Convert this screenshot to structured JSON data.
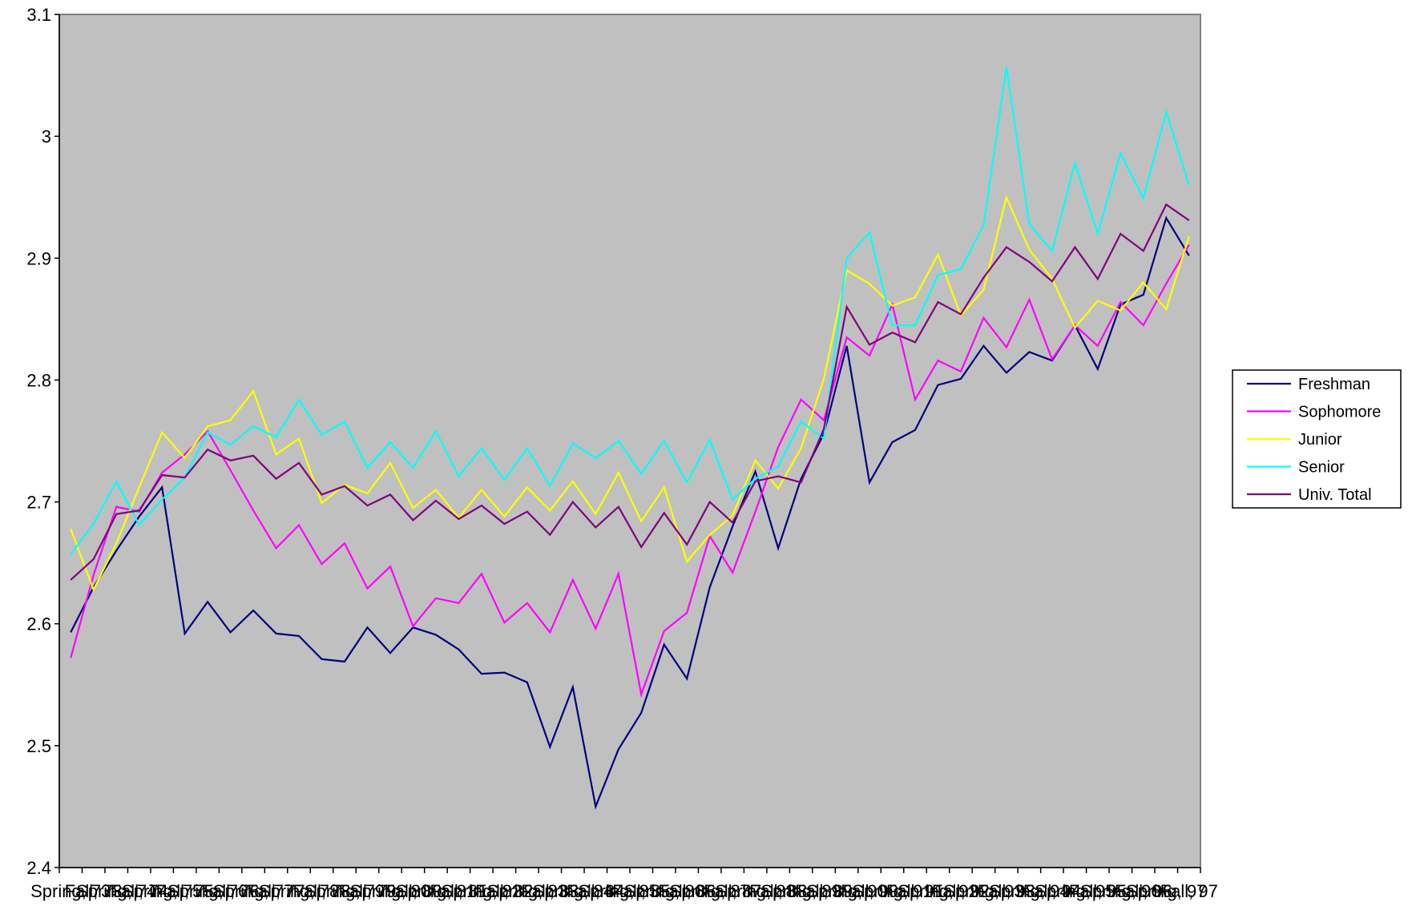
{
  "chart_data": {
    "type": "line",
    "title": "",
    "xlabel": "",
    "ylabel": "",
    "ylim": [
      2.4,
      3.1
    ],
    "yticks": [
      2.4,
      2.5,
      2.6,
      2.7,
      2.8,
      2.9,
      3,
      3.1
    ],
    "ytick_labels": [
      "2.4",
      "2.5",
      "2.6",
      "2.7",
      "2.8",
      "2.9",
      "3",
      "3.1"
    ],
    "grid": false,
    "plot_background": "#c0c0c0",
    "legend_position": "right",
    "categories": [
      "Spring, 73",
      "Fall, 73",
      "Spring, 74",
      "Fall, 74",
      "Spring, 75",
      "Fall, 75",
      "Spring, 76",
      "Fall, 76",
      "Spring, 77",
      "Fall, 77",
      "Spring, 78",
      "Fall, 78",
      "Spring, 79",
      "Fall, 79",
      "Spring, 80",
      "Fall, 80",
      "Spring, 81",
      "Fall, 81",
      "Spring, 82",
      "Fall, 82",
      "Spring, 83",
      "Fall, 83",
      "Spring, 84",
      "Fall, 84",
      "Spring, 85",
      "Fall, 85",
      "Spring, 86",
      "Fall, 86",
      "Spring, 87",
      "Fall, 87",
      "Spring, 88",
      "Fall, 88",
      "Spring, 89",
      "Fall, 89",
      "Spring, 90",
      "Fall, 90",
      "Spring, 91",
      "Fall, 91",
      "Spring, 92",
      "Fall, 92",
      "Spring, 93",
      "Fall, 93",
      "Spring, 94",
      "Fall, 94",
      "Spring, 95",
      "Fall, 95",
      "Spring, 96",
      "Fall, 96",
      "Spring, 97",
      "Fall, 97"
    ],
    "series": [
      {
        "name": "Freshman",
        "color": "#000080",
        "values": [
          2.593,
          2.63,
          2.66,
          2.688,
          2.712,
          2.592,
          2.618,
          2.593,
          2.611,
          2.592,
          2.59,
          2.571,
          2.569,
          2.597,
          2.576,
          2.597,
          2.591,
          2.579,
          2.559,
          2.56,
          2.552,
          2.499,
          2.548,
          2.45,
          2.497,
          2.527,
          2.583,
          2.555,
          2.63,
          2.68,
          2.725,
          2.662,
          2.719,
          2.756,
          2.828,
          2.716,
          2.749,
          2.759,
          2.796,
          2.801,
          2.828,
          2.806,
          2.823,
          2.816,
          2.845,
          2.809,
          2.862,
          2.87,
          2.933,
          2.902
        ]
      },
      {
        "name": "Sophomore",
        "color": "#ff00ff",
        "values": [
          2.572,
          2.64,
          2.696,
          2.692,
          2.724,
          2.739,
          2.758,
          2.726,
          2.693,
          2.662,
          2.681,
          2.649,
          2.666,
          2.629,
          2.647,
          2.598,
          2.621,
          2.617,
          2.641,
          2.601,
          2.617,
          2.593,
          2.636,
          2.596,
          2.641,
          2.542,
          2.594,
          2.609,
          2.672,
          2.642,
          2.692,
          2.745,
          2.784,
          2.767,
          2.835,
          2.82,
          2.862,
          2.784,
          2.816,
          2.807,
          2.851,
          2.827,
          2.866,
          2.817,
          2.845,
          2.828,
          2.864,
          2.845,
          2.879,
          2.911
        ]
      },
      {
        "name": "Junior",
        "color": "#ffff00",
        "values": [
          2.678,
          2.628,
          2.666,
          2.712,
          2.757,
          2.736,
          2.762,
          2.767,
          2.791,
          2.739,
          2.752,
          2.699,
          2.714,
          2.707,
          2.732,
          2.695,
          2.71,
          2.687,
          2.71,
          2.688,
          2.712,
          2.693,
          2.717,
          2.69,
          2.724,
          2.684,
          2.712,
          2.651,
          2.673,
          2.689,
          2.734,
          2.711,
          2.744,
          2.801,
          2.89,
          2.879,
          2.861,
          2.868,
          2.903,
          2.853,
          2.874,
          2.95,
          2.907,
          2.883,
          2.843,
          2.865,
          2.857,
          2.88,
          2.858,
          2.918
        ]
      },
      {
        "name": "Senior",
        "color": "#00ffff",
        "values": [
          2.657,
          2.682,
          2.717,
          2.681,
          2.702,
          2.72,
          2.757,
          2.747,
          2.762,
          2.753,
          2.784,
          2.755,
          2.766,
          2.728,
          2.749,
          2.728,
          2.758,
          2.721,
          2.744,
          2.718,
          2.744,
          2.713,
          2.748,
          2.736,
          2.75,
          2.723,
          2.75,
          2.716,
          2.751,
          2.702,
          2.719,
          2.729,
          2.766,
          2.752,
          2.9,
          2.921,
          2.845,
          2.845,
          2.886,
          2.891,
          2.927,
          3.057,
          2.928,
          2.906,
          2.978,
          2.92,
          2.986,
          2.949,
          3.02,
          2.96
        ]
      },
      {
        "name": "Univ. Total",
        "color": "#800080",
        "values": [
          2.636,
          2.653,
          2.69,
          2.693,
          2.722,
          2.72,
          2.743,
          2.734,
          2.738,
          2.719,
          2.732,
          2.706,
          2.713,
          2.697,
          2.706,
          2.685,
          2.701,
          2.686,
          2.697,
          2.682,
          2.692,
          2.673,
          2.7,
          2.679,
          2.696,
          2.663,
          2.691,
          2.665,
          2.7,
          2.683,
          2.717,
          2.721,
          2.716,
          2.76,
          2.86,
          2.829,
          2.839,
          2.831,
          2.864,
          2.854,
          2.884,
          2.909,
          2.897,
          2.881,
          2.909,
          2.883,
          2.92,
          2.906,
          2.944,
          2.931
        ]
      }
    ]
  }
}
